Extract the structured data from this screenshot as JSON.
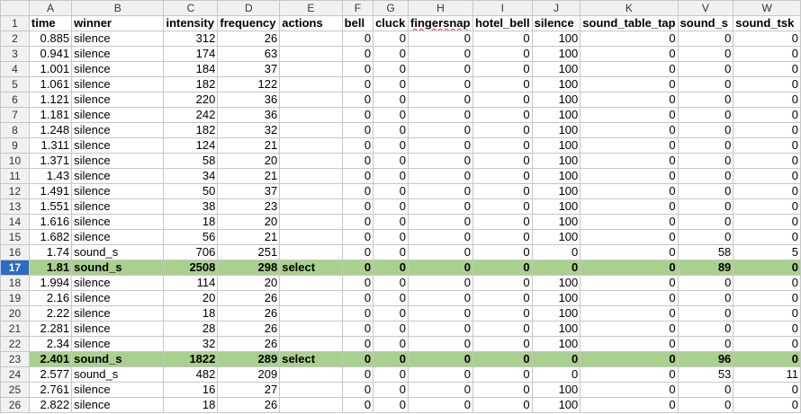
{
  "columns": [
    "A",
    "B",
    "C",
    "D",
    "E",
    "F",
    "G",
    "H",
    "I",
    "J",
    "K",
    "V",
    "W"
  ],
  "header_row": {
    "num": "1",
    "cells": [
      "time",
      "winner",
      "intensity",
      "frequency",
      "actions",
      "bell",
      "cluck",
      "fingersnap",
      "hotel_bell",
      "silence",
      "sound_table_tap",
      "sound_s",
      "sound_tsk"
    ]
  },
  "rows": [
    {
      "num": "2",
      "cells": [
        "0.885",
        "silence",
        "312",
        "26",
        "",
        "0",
        "0",
        "0",
        "0",
        "100",
        "0",
        "0",
        "0"
      ]
    },
    {
      "num": "3",
      "cells": [
        "0.941",
        "silence",
        "174",
        "63",
        "",
        "0",
        "0",
        "0",
        "0",
        "100",
        "0",
        "0",
        "0"
      ]
    },
    {
      "num": "4",
      "cells": [
        "1.001",
        "silence",
        "184",
        "37",
        "",
        "0",
        "0",
        "0",
        "0",
        "100",
        "0",
        "0",
        "0"
      ]
    },
    {
      "num": "5",
      "cells": [
        "1.061",
        "silence",
        "182",
        "122",
        "",
        "0",
        "0",
        "0",
        "0",
        "100",
        "0",
        "0",
        "0"
      ]
    },
    {
      "num": "6",
      "cells": [
        "1.121",
        "silence",
        "220",
        "36",
        "",
        "0",
        "0",
        "0",
        "0",
        "100",
        "0",
        "0",
        "0"
      ]
    },
    {
      "num": "7",
      "cells": [
        "1.181",
        "silence",
        "242",
        "36",
        "",
        "0",
        "0",
        "0",
        "0",
        "100",
        "0",
        "0",
        "0"
      ]
    },
    {
      "num": "8",
      "cells": [
        "1.248",
        "silence",
        "182",
        "32",
        "",
        "0",
        "0",
        "0",
        "0",
        "100",
        "0",
        "0",
        "0"
      ]
    },
    {
      "num": "9",
      "cells": [
        "1.311",
        "silence",
        "124",
        "21",
        "",
        "0",
        "0",
        "0",
        "0",
        "100",
        "0",
        "0",
        "0"
      ]
    },
    {
      "num": "10",
      "cells": [
        "1.371",
        "silence",
        "58",
        "20",
        "",
        "0",
        "0",
        "0",
        "0",
        "100",
        "0",
        "0",
        "0"
      ]
    },
    {
      "num": "11",
      "cells": [
        "1.43",
        "silence",
        "34",
        "21",
        "",
        "0",
        "0",
        "0",
        "0",
        "100",
        "0",
        "0",
        "0"
      ]
    },
    {
      "num": "12",
      "cells": [
        "1.491",
        "silence",
        "50",
        "37",
        "",
        "0",
        "0",
        "0",
        "0",
        "100",
        "0",
        "0",
        "0"
      ]
    },
    {
      "num": "13",
      "cells": [
        "1.551",
        "silence",
        "38",
        "23",
        "",
        "0",
        "0",
        "0",
        "0",
        "100",
        "0",
        "0",
        "0"
      ]
    },
    {
      "num": "14",
      "cells": [
        "1.616",
        "silence",
        "18",
        "20",
        "",
        "0",
        "0",
        "0",
        "0",
        "100",
        "0",
        "0",
        "0"
      ]
    },
    {
      "num": "15",
      "cells": [
        "1.682",
        "silence",
        "56",
        "21",
        "",
        "0",
        "0",
        "0",
        "0",
        "100",
        "0",
        "0",
        "0"
      ]
    },
    {
      "num": "16",
      "cells": [
        "1.74",
        "sound_s",
        "706",
        "251",
        "",
        "0",
        "0",
        "0",
        "0",
        "0",
        "0",
        "58",
        "5"
      ]
    },
    {
      "num": "17",
      "cells": [
        "1.81",
        "sound_s",
        "2508",
        "298",
        "select",
        "0",
        "0",
        "0",
        "0",
        "0",
        "0",
        "89",
        "0"
      ],
      "highlight": true,
      "selected": true
    },
    {
      "num": "18",
      "cells": [
        "1.994",
        "silence",
        "114",
        "20",
        "",
        "0",
        "0",
        "0",
        "0",
        "100",
        "0",
        "0",
        "0"
      ]
    },
    {
      "num": "19",
      "cells": [
        "2.16",
        "silence",
        "20",
        "26",
        "",
        "0",
        "0",
        "0",
        "0",
        "100",
        "0",
        "0",
        "0"
      ]
    },
    {
      "num": "20",
      "cells": [
        "2.22",
        "silence",
        "18",
        "26",
        "",
        "0",
        "0",
        "0",
        "0",
        "100",
        "0",
        "0",
        "0"
      ]
    },
    {
      "num": "21",
      "cells": [
        "2.281",
        "silence",
        "28",
        "26",
        "",
        "0",
        "0",
        "0",
        "0",
        "100",
        "0",
        "0",
        "0"
      ]
    },
    {
      "num": "22",
      "cells": [
        "2.34",
        "silence",
        "32",
        "26",
        "",
        "0",
        "0",
        "0",
        "0",
        "100",
        "0",
        "0",
        "0"
      ]
    },
    {
      "num": "23",
      "cells": [
        "2.401",
        "sound_s",
        "1822",
        "289",
        "select",
        "0",
        "0",
        "0",
        "0",
        "0",
        "0",
        "96",
        "0"
      ],
      "highlight": true
    },
    {
      "num": "24",
      "cells": [
        "2.577",
        "sound_s",
        "482",
        "209",
        "",
        "0",
        "0",
        "0",
        "0",
        "0",
        "0",
        "53",
        "11"
      ]
    },
    {
      "num": "25",
      "cells": [
        "2.761",
        "silence",
        "16",
        "27",
        "",
        "0",
        "0",
        "0",
        "0",
        "100",
        "0",
        "0",
        "0"
      ]
    },
    {
      "num": "26",
      "cells": [
        "2.822",
        "silence",
        "18",
        "26",
        "",
        "0",
        "0",
        "0",
        "0",
        "100",
        "0",
        "0",
        "0"
      ]
    }
  ]
}
